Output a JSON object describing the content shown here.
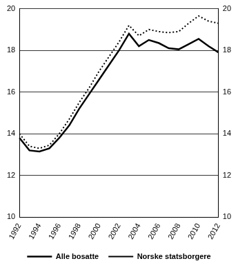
{
  "chart_data": {
    "type": "line",
    "categories": [
      "1992",
      null,
      "1994",
      null,
      "1996",
      null,
      "1998",
      null,
      "2000",
      null,
      "2002",
      null,
      "2004",
      null,
      "2006",
      null,
      "2008",
      null,
      "2010",
      null,
      "2012"
    ],
    "series": [
      {
        "name": "Alle bosatte",
        "color": "#000000",
        "line_style": "solid",
        "values": [
          13.8,
          13.2,
          13.15,
          13.3,
          13.8,
          14.4,
          15.2,
          15.9,
          16.6,
          17.3,
          18.0,
          18.8,
          18.2,
          18.5,
          18.35,
          18.1,
          18.05,
          18.3,
          18.55,
          18.2,
          17.9
        ]
      },
      {
        "name": "Norske statsborgere",
        "color": "#000000",
        "line_style": "dotted",
        "values": [
          14.0,
          13.4,
          13.3,
          13.45,
          14.0,
          14.7,
          15.5,
          16.2,
          17.0,
          17.7,
          18.4,
          19.2,
          18.7,
          19.0,
          18.9,
          18.85,
          18.9,
          19.3,
          19.65,
          19.4,
          19.3
        ]
      }
    ],
    "ylim": [
      10,
      20
    ],
    "yticks": [
      10,
      12,
      14,
      16,
      18,
      20
    ],
    "y2lim": [
      10,
      20
    ],
    "y2ticks": [
      10,
      12,
      14,
      16,
      18,
      20
    ],
    "grid": true,
    "legend": "bottom"
  }
}
